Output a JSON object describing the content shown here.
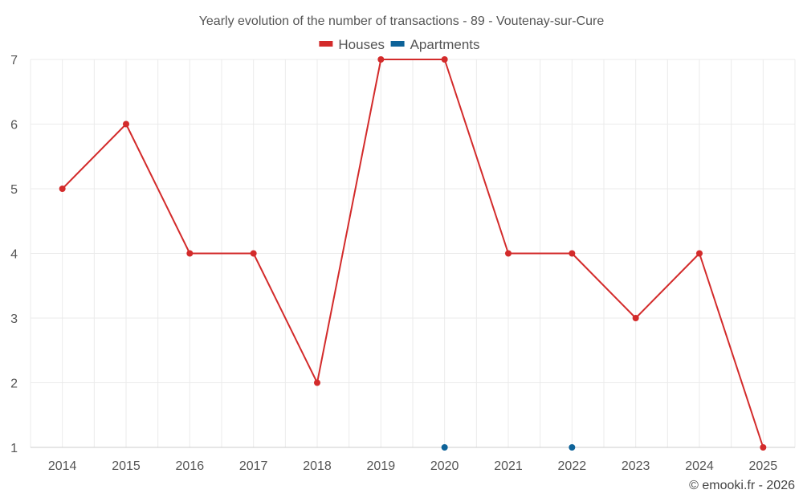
{
  "chart_data": {
    "type": "line",
    "title": "Yearly evolution of the number of transactions - 89 - Voutenay-sur-Cure",
    "categories": [
      "2014",
      "2015",
      "2016",
      "2017",
      "2018",
      "2019",
      "2020",
      "2021",
      "2022",
      "2023",
      "2024",
      "2025"
    ],
    "yticks": [
      1,
      2,
      3,
      4,
      5,
      6,
      7
    ],
    "ylim": [
      1,
      7
    ],
    "xlabel": "",
    "ylabel": "",
    "grid": true,
    "legend_position": "top-center",
    "series": [
      {
        "name": "Houses",
        "color": "#d32b2b",
        "values": [
          5,
          6,
          4,
          4,
          2,
          7,
          7,
          4,
          4,
          3,
          4,
          1
        ]
      },
      {
        "name": "Apartments",
        "color": "#0e6399",
        "values": [
          null,
          null,
          null,
          null,
          null,
          null,
          1,
          null,
          1,
          null,
          null,
          null
        ]
      }
    ]
  },
  "credit": "© emooki.fr - 2026"
}
